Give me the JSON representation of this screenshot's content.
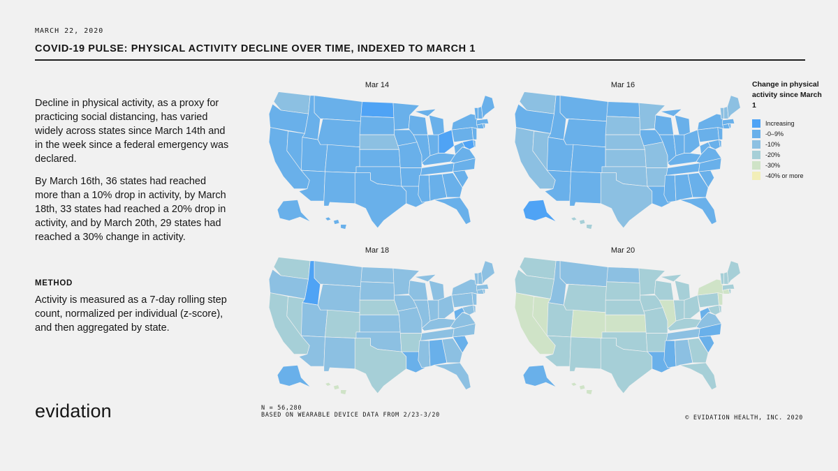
{
  "header": {
    "date": "MARCH 22, 2020",
    "title": "COVID-19 PULSE: PHYSICAL ACTIVITY DECLINE OVER TIME, INDEXED TO MARCH 1"
  },
  "body": {
    "paragraph1": "Decline in physical activity, as a proxy for practicing social distancing, has varied widely across states since March 14th and in the week since a federal emergency was declared.",
    "paragraph2": "By March 16th, 36 states had reached more than a 10% drop in activity, by March 18th, 33 states had reached a 20% drop in activity, and by March 20th, 29 states had reached a 30% change in activity.",
    "method_heading": "METHOD",
    "method_text": "Activity is measured as a 7-day rolling step count, normalized per individual (z-score), and then aggregated by state."
  },
  "logo": "evidation",
  "footer": {
    "n_line": "N = 56,280",
    "source_line": "BASED ON WEARABLE DEVICE DATA FROM 2/23-3/20",
    "copyright": "© EVIDATION HEALTH, INC. 2020"
  },
  "legend": {
    "title": "Change in physical activity since March 1",
    "items": [
      {
        "label": "Increasing",
        "color": "#4fa3f5"
      },
      {
        "label": "-0–9%",
        "color": "#69b0ea"
      },
      {
        "label": "-10%",
        "color": "#8cc0e2"
      },
      {
        "label": "-20%",
        "color": "#a6cfd7"
      },
      {
        "label": "-30%",
        "color": "#cfe3c7"
      },
      {
        "label": "-40% or more",
        "color": "#f2eeb8"
      }
    ]
  },
  "maps": [
    {
      "title": "Mar 14",
      "default": 1,
      "states": {
        "ND": 0,
        "OH": 0,
        "MD": 0,
        "NY": 1,
        "ME": 1,
        "WA": 2,
        "NE": 2,
        "MN": 1,
        "LA": 1,
        "MS": 1,
        "AK": 1,
        "HI": 1
      }
    },
    {
      "title": "Mar 16",
      "default": 1,
      "states": {
        "AK": 0,
        "ME": 2,
        "WA": 2,
        "CA": 2,
        "NV": 2,
        "TX": 2,
        "OK": 2,
        "KS": 2,
        "NE": 2,
        "MN": 2,
        "IA": 1,
        "MO": 2,
        "AR": 2,
        "OR": 1,
        "ND": 1,
        "SD": 2,
        "MT": 1,
        "ID": 1,
        "WI": 1,
        "MI": 1,
        "VT": 2,
        "NH": 2,
        "MA": 1,
        "HI": 3
      }
    },
    {
      "title": "Mar 18",
      "default": 2,
      "states": {
        "WA": 3,
        "CA": 3,
        "NV": 3,
        "TX": 3,
        "NE": 3,
        "AZ": 2,
        "NM": 2,
        "UT": 2,
        "CO": 3,
        "OR": 2,
        "ID": 0,
        "AK": 1,
        "LA": 1,
        "AL": 1,
        "SC": 1,
        "WV": 1,
        "FL": 2,
        "HI": 4,
        "KS": 2,
        "OK": 2,
        "MO": 2,
        "AR": 3,
        "MS": 2,
        "GA": 2,
        "NC": 2,
        "VA": 2,
        "KY": 2,
        "TN": 2,
        "OH": 2,
        "IN": 2,
        "IL": 2,
        "WI": 2,
        "MN": 2,
        "ND": 2,
        "SD": 2,
        "MT": 2,
        "WY": 2,
        "IA": 2,
        "MI": 2,
        "PA": 2,
        "NY": 2,
        "ME": 2,
        "VT": 2,
        "NH": 2,
        "MA": 2,
        "CT": 2,
        "NJ": 2,
        "DE": 2,
        "MD": 2,
        "RI": 2
      }
    },
    {
      "title": "Mar 20",
      "default": 3,
      "states": {
        "CA": 4,
        "NV": 4,
        "CO": 4,
        "KS": 4,
        "IL": 4,
        "NY": 4,
        "NJ": 4,
        "CT": 4,
        "PA": 3,
        "MT": 2,
        "ND": 2,
        "ID": 2,
        "OR": 3,
        "WA": 3,
        "AK": 1,
        "HI": 4,
        "LA": 1,
        "MS": 1,
        "AL": 2,
        "NC": 1,
        "SC": 1,
        "WV": 1,
        "VA": 2,
        "GA": 3,
        "FL": 3,
        "TN": 2,
        "KY": 3,
        "OH": 3,
        "IN": 3,
        "MI": 3,
        "WI": 3,
        "MN": 3,
        "SD": 3,
        "NE": 3,
        "IA": 3,
        "MO": 3,
        "AR": 3,
        "OK": 3,
        "TX": 3,
        "NM": 3,
        "AZ": 3,
        "UT": 3,
        "WY": 3,
        "ME": 3,
        "VT": 3,
        "NH": 3,
        "MA": 3,
        "RI": 3,
        "DE": 3,
        "MD": 3
      }
    }
  ]
}
